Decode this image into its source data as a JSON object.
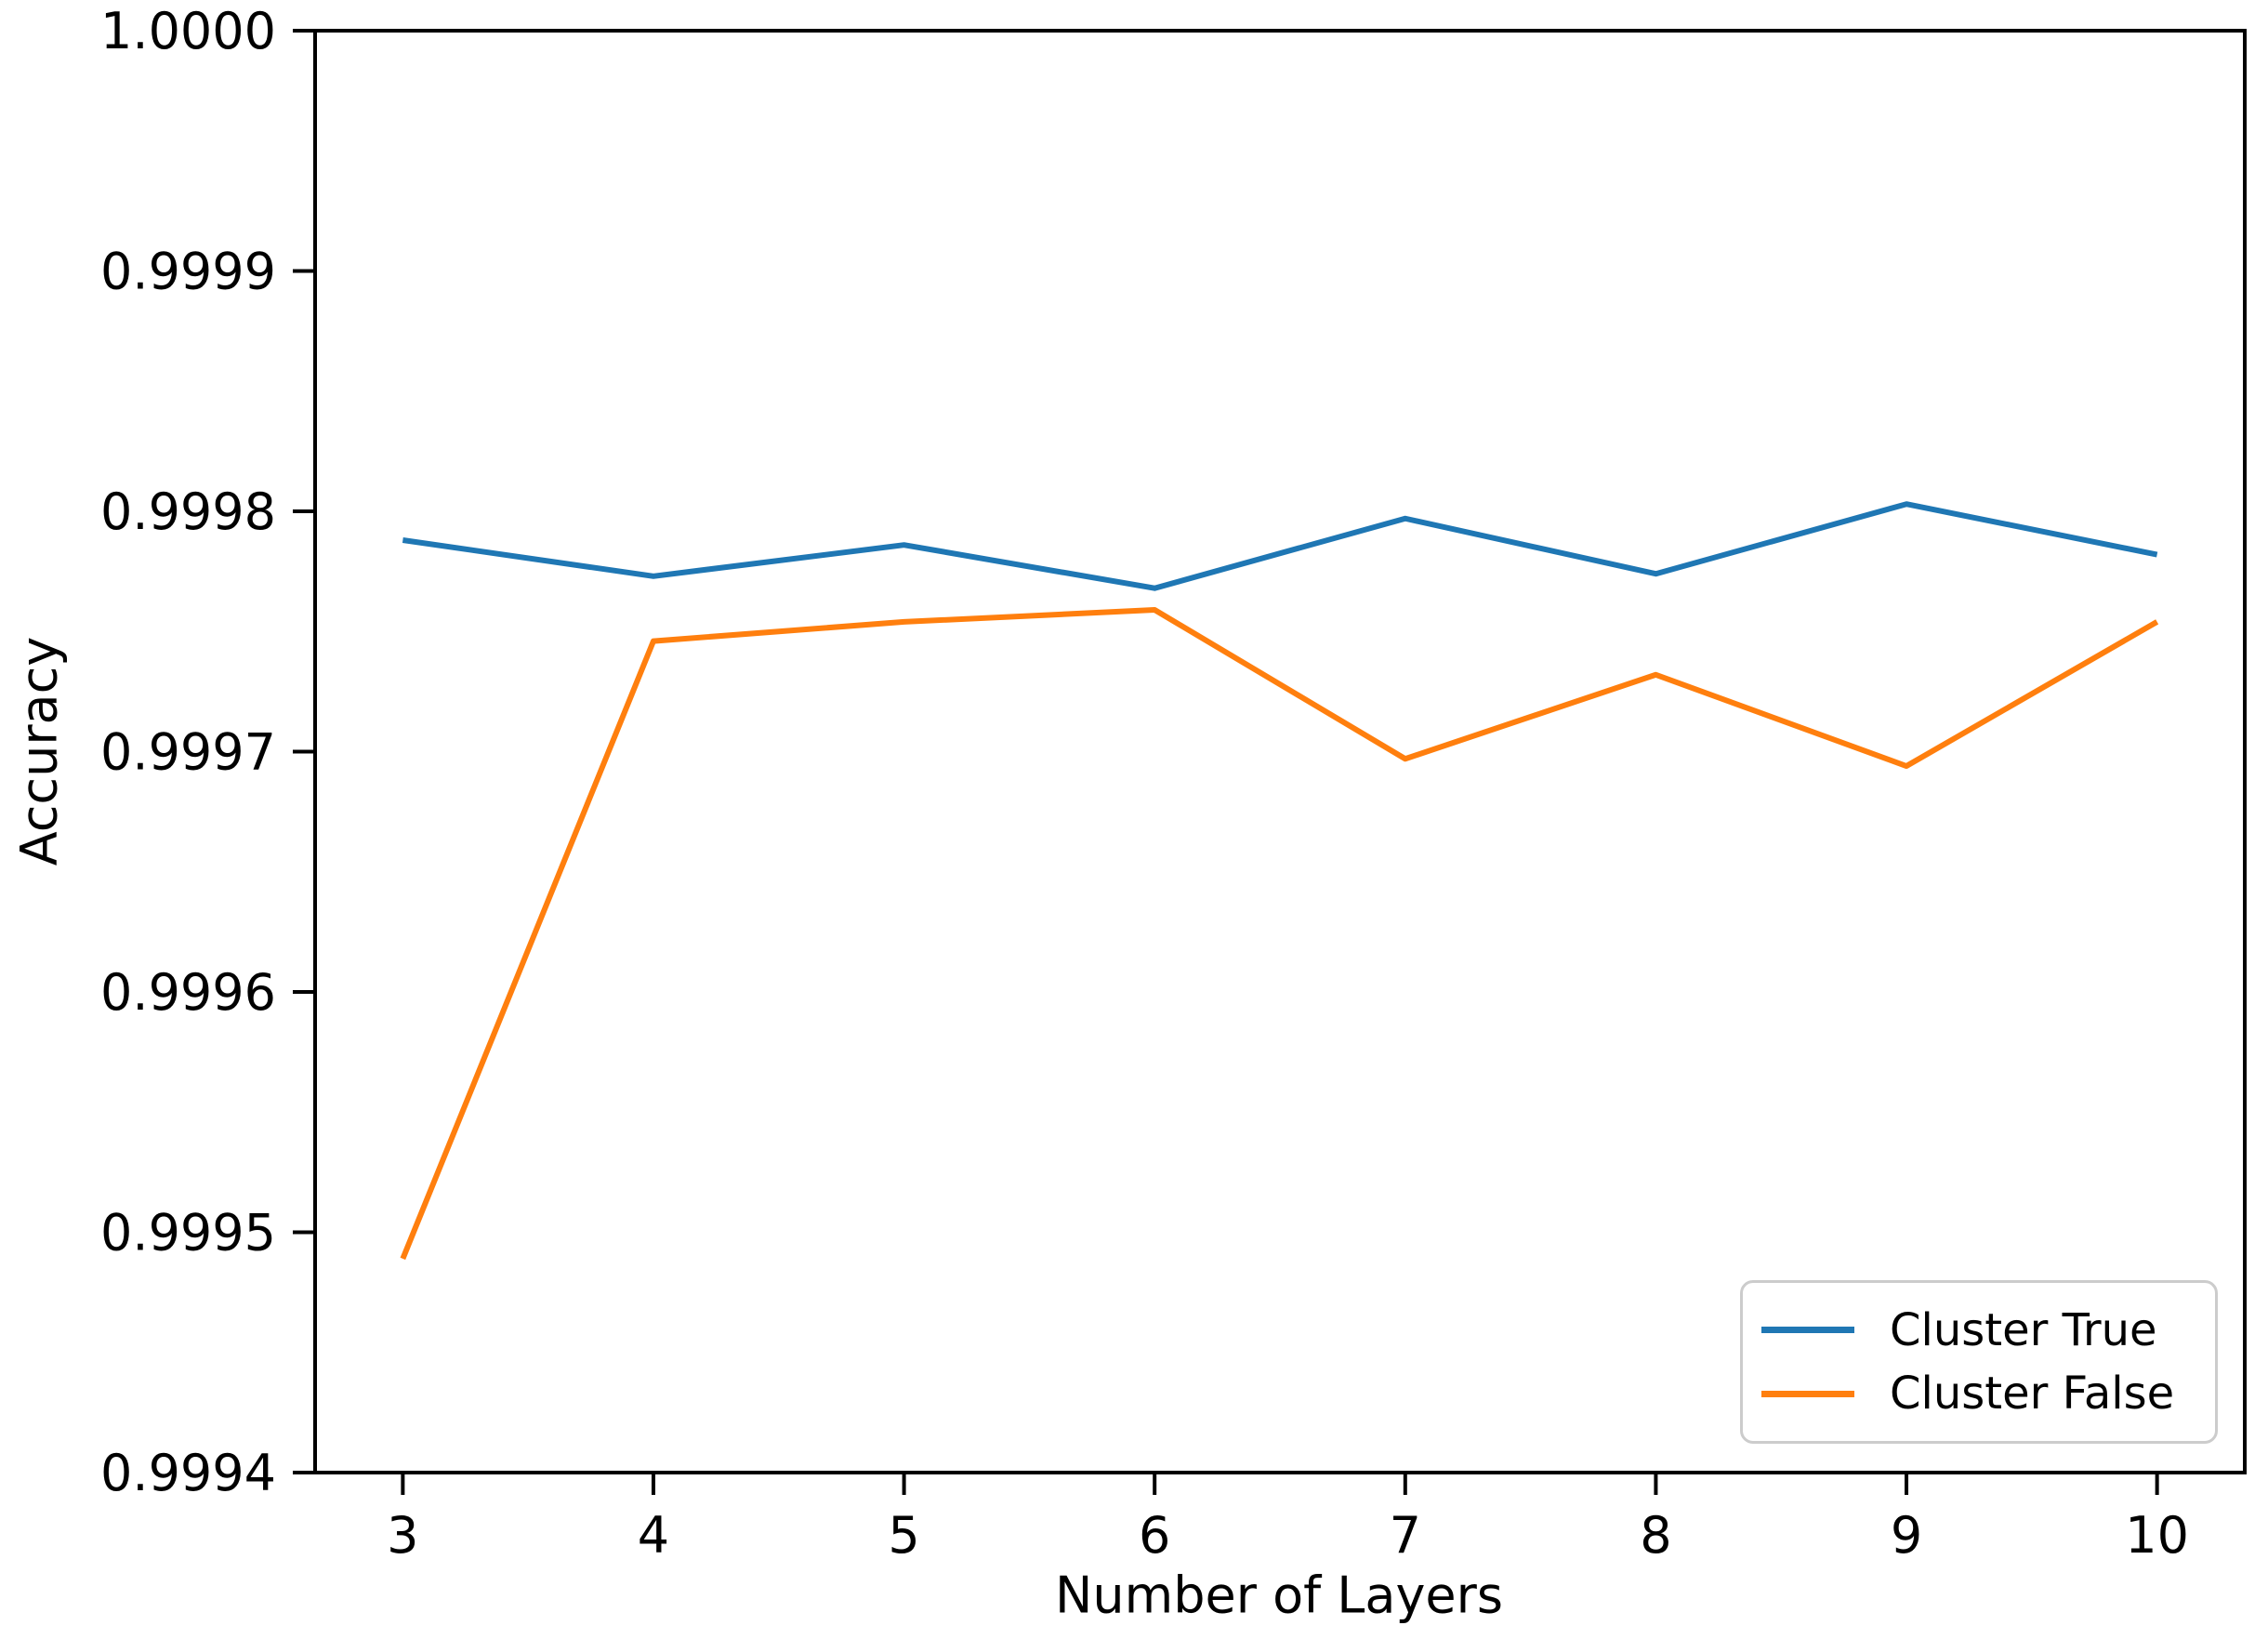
{
  "chart_data": {
    "type": "line",
    "title": "",
    "xlabel": "Number of Layers",
    "ylabel": "Accuracy",
    "x": [
      3,
      4,
      5,
      6,
      7,
      8,
      9,
      10
    ],
    "series": [
      {
        "name": "Cluster True",
        "color": "#1f77b4",
        "values": [
          0.999788,
          0.999773,
          0.999786,
          0.999768,
          0.999797,
          0.999774,
          0.999803,
          0.999782
        ]
      },
      {
        "name": "Cluster False",
        "color": "#ff7f0e",
        "values": [
          0.999489,
          0.999746,
          0.999754,
          0.999759,
          0.999697,
          0.999732,
          0.999694,
          0.999754
        ]
      }
    ],
    "xticks": [
      3,
      4,
      5,
      6,
      7,
      8,
      9,
      10
    ],
    "xtick_labels": [
      "3",
      "4",
      "5",
      "6",
      "7",
      "8",
      "9",
      "10"
    ],
    "yticks": [
      0.9994,
      0.9995,
      0.9996,
      0.9997,
      0.9998,
      0.9999,
      1.0
    ],
    "ytick_labels": [
      "0.9994",
      "0.9995",
      "0.9996",
      "0.9997",
      "0.9998",
      "0.9999",
      "1.0000"
    ],
    "xlim": [
      2.65,
      10.35
    ],
    "ylim": [
      0.9994,
      1.0
    ],
    "grid": false,
    "legend_position": "lower right",
    "axis_color": "#000000",
    "background": "#ffffff"
  }
}
